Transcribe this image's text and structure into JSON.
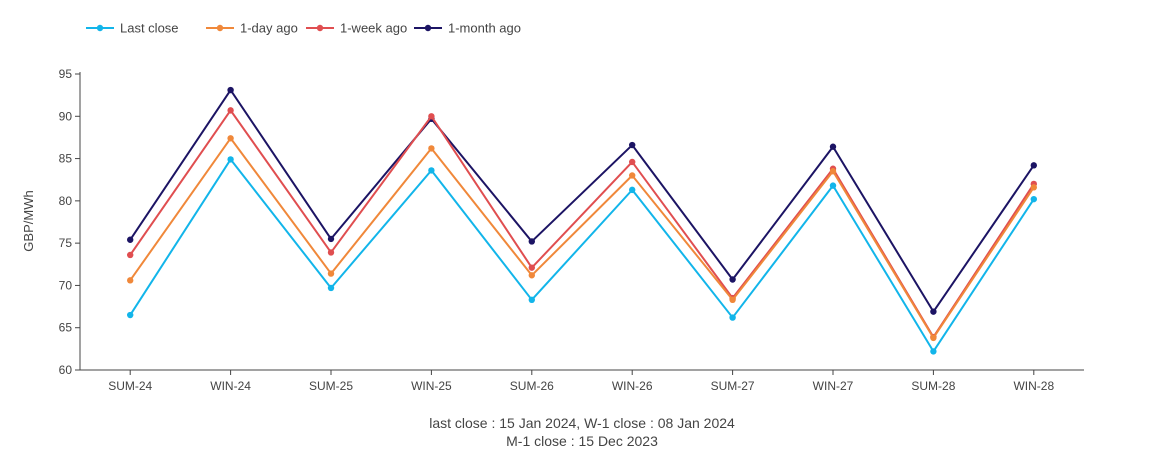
{
  "chart_data": {
    "type": "line",
    "categories": [
      "SUM-24",
      "WIN-24",
      "SUM-25",
      "WIN-25",
      "SUM-26",
      "WIN-26",
      "SUM-27",
      "WIN-27",
      "SUM-28",
      "WIN-28"
    ],
    "series": [
      {
        "name": "Last close",
        "color": "#12b5ea",
        "values": [
          66.5,
          84.9,
          69.7,
          83.6,
          68.3,
          81.3,
          66.2,
          81.8,
          62.2,
          80.2
        ]
      },
      {
        "name": "1-day ago",
        "color": "#f0883a",
        "values": [
          70.6,
          87.4,
          71.4,
          86.2,
          71.2,
          83.0,
          68.3,
          83.5,
          63.8,
          81.6
        ]
      },
      {
        "name": "1-week ago",
        "color": "#e04e50",
        "values": [
          73.6,
          90.7,
          73.9,
          90.0,
          72.1,
          84.6,
          68.5,
          83.8,
          63.9,
          82.0
        ]
      },
      {
        "name": "1-month ago",
        "color": "#1c1464",
        "values": [
          75.4,
          93.1,
          75.5,
          89.7,
          75.2,
          86.6,
          70.7,
          86.4,
          66.9,
          84.2
        ]
      }
    ],
    "xlabel": "",
    "ylabel": "GBP/MWh",
    "ylim": [
      60,
      95
    ],
    "yticks": [
      60,
      65,
      70,
      75,
      80,
      85,
      90,
      95
    ],
    "grid": false,
    "legend_position": "top-left",
    "caption_lines": [
      "last close : 15 Jan 2024, W-1 close : 08 Jan 2024",
      "M-1 close : 15 Dec 2023"
    ]
  }
}
